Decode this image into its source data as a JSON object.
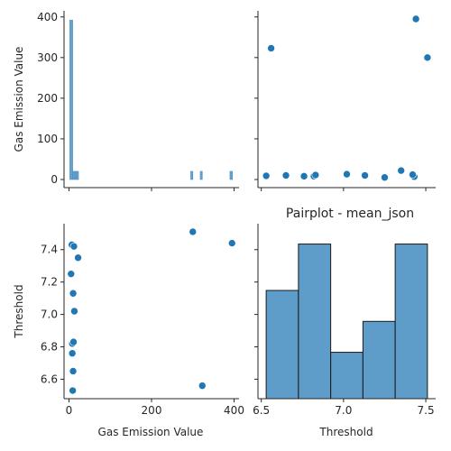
{
  "title": "Pairplot - mean_json",
  "chart_data": {
    "type": "pairplot",
    "title": "Pairplot - mean_json",
    "variables": [
      "Gas Emission Value",
      "Threshold"
    ],
    "color": "#1f77b4",
    "hist_color": "#4c91c4",
    "points": [
      {
        "gas": 5,
        "threshold": 7.25
      },
      {
        "gas": 7,
        "threshold": 7.43
      },
      {
        "gas": 8,
        "threshold": 6.82
      },
      {
        "gas": 8,
        "threshold": 6.76
      },
      {
        "gas": 9,
        "threshold": 6.53
      },
      {
        "gas": 10,
        "threshold": 6.65
      },
      {
        "gas": 10,
        "threshold": 7.13
      },
      {
        "gas": 11,
        "threshold": 6.83
      },
      {
        "gas": 12,
        "threshold": 7.42
      },
      {
        "gas": 13,
        "threshold": 7.02
      },
      {
        "gas": 22,
        "threshold": 7.35
      },
      {
        "gas": 300,
        "threshold": 7.51
      },
      {
        "gas": 323,
        "threshold": 6.56
      },
      {
        "gas": 395,
        "threshold": 7.44
      }
    ],
    "gas_hist": {
      "bins": [
        {
          "x0": 2,
          "x1": 9,
          "count": 392
        },
        {
          "x0": 9,
          "x1": 13,
          "count": 20
        },
        {
          "x0": 14,
          "x1": 18,
          "count": 20
        },
        {
          "x0": 18,
          "x1": 23,
          "count": 20
        },
        {
          "x0": 295,
          "x1": 300,
          "count": 20
        },
        {
          "x0": 318,
          "x1": 323,
          "count": 20
        },
        {
          "x0": 390,
          "x1": 396,
          "count": 20
        }
      ]
    },
    "threshold_hist": {
      "bins": [
        {
          "x0": 6.53,
          "x1": 6.726,
          "count": 2.8
        },
        {
          "x0": 6.726,
          "x1": 6.922,
          "count": 4.0
        },
        {
          "x0": 6.922,
          "x1": 7.118,
          "count": 1.2
        },
        {
          "x0": 7.118,
          "x1": 7.314,
          "count": 2.0
        },
        {
          "x0": 7.314,
          "x1": 7.51,
          "count": 4.0
        }
      ]
    },
    "axes": {
      "gas": {
        "label": "Gas Emission Value",
        "lim": [
          -12,
          412
        ],
        "ticks": [
          0,
          200,
          400
        ]
      },
      "threshold": {
        "label": "Threshold",
        "lim": [
          6.48,
          7.56
        ],
        "ticks": [
          6.6,
          6.8,
          7.0,
          7.2,
          7.4
        ]
      },
      "gas_count": {
        "lim": [
          -20,
          415
        ],
        "ticks": [
          0,
          100,
          200,
          300,
          400
        ]
      },
      "threshold_x": {
        "lim": [
          6.48,
          7.56
        ],
        "ticks": [
          6.5,
          7.0,
          7.5
        ]
      }
    },
    "tick_labels": {
      "gas_x": [
        "0",
        "200",
        "400"
      ],
      "gas_y": [
        "0",
        "100",
        "200",
        "300",
        "400"
      ],
      "threshold_y": [
        "6.6",
        "6.8",
        "7.0",
        "7.2",
        "7.4"
      ],
      "threshold_x": [
        "6.5",
        "7.0",
        "7.5"
      ]
    },
    "grid": false,
    "legend": "none"
  }
}
